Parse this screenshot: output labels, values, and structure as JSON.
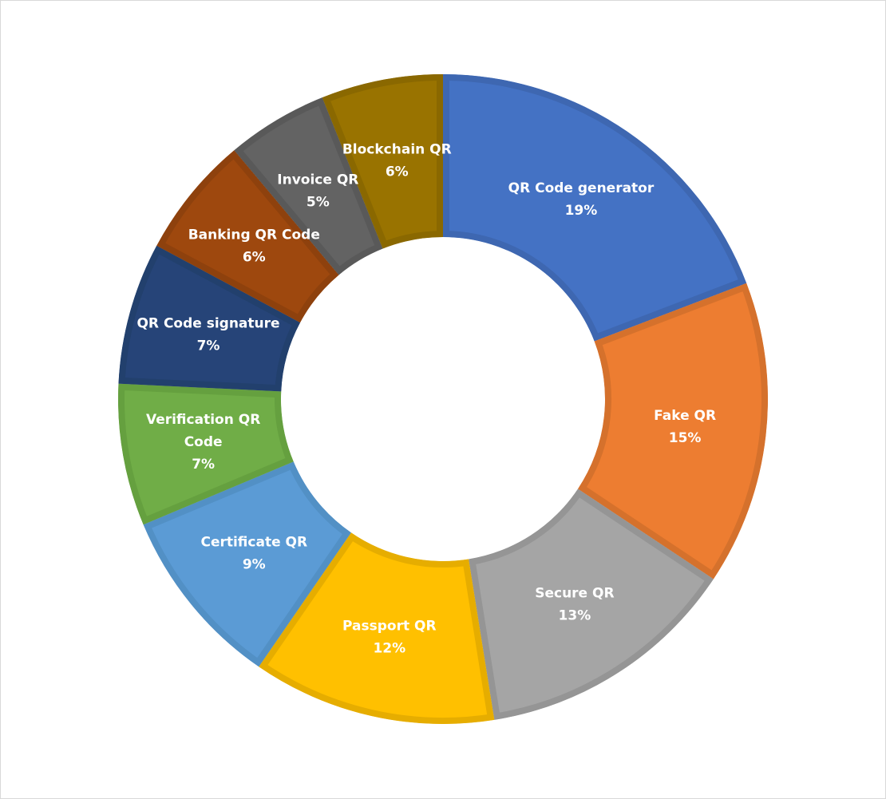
{
  "chart_data": {
    "type": "pie",
    "variant": "donut",
    "start": "top, clockwise",
    "legend": "none (category labels inside slices)",
    "categories": [
      "QR Code generator",
      "Fake QR",
      "Secure QR",
      "Passport QR",
      "Certificate QR",
      "Verification QR Code",
      "QR Code signature",
      "Banking QR Code",
      "Invoice QR",
      "Blockchain QR"
    ],
    "values": [
      19,
      15,
      13,
      12,
      9,
      7,
      7,
      6,
      5,
      6
    ],
    "value_labels": [
      "19%",
      "15%",
      "13%",
      "12%",
      "9%",
      "7%",
      "7%",
      "6%",
      "5%",
      "6%"
    ],
    "colors": [
      "#4472C4",
      "#ED7D31",
      "#A5A5A5",
      "#FFC000",
      "#5B9BD5",
      "#70AD47",
      "#264478",
      "#9E480E",
      "#636363",
      "#997300"
    ],
    "border_colors": [
      "#3E67B1",
      "#D5712C",
      "#959595",
      "#E6AD00",
      "#5290C5",
      "#65A03F",
      "#22406D",
      "#8E410D",
      "#595959",
      "#8A6800"
    ]
  }
}
